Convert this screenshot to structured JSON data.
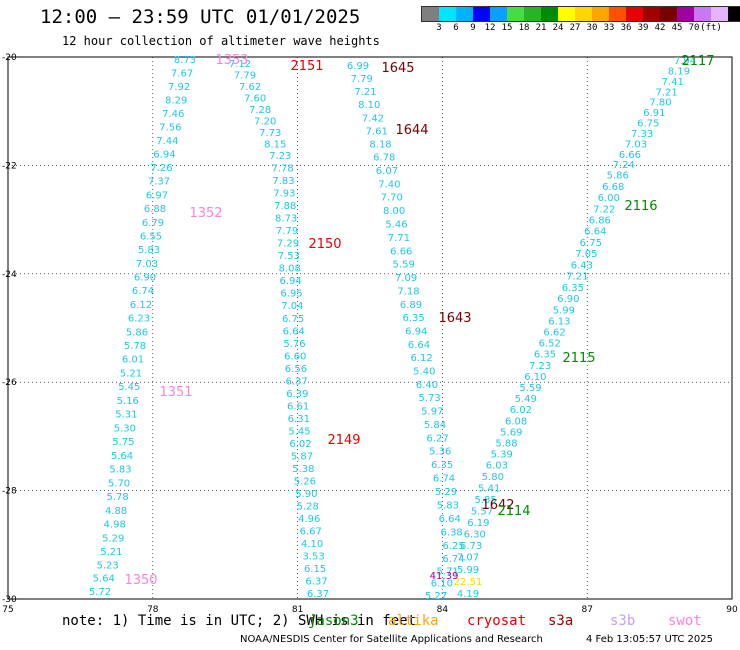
{
  "header": {
    "title": "12:00 – 23:59 UTC 01/01/2025",
    "subtitle": "12 hour collection of altimeter wave heights"
  },
  "legend": {
    "unit": "(ft)",
    "colors": [
      "#7f7f7f",
      "#00e5ff",
      "#00b2ff",
      "#0000ff",
      "#0aa0ff",
      "#46dc46",
      "#28b428",
      "#008c00",
      "#ffff00",
      "#ffd700",
      "#ffa500",
      "#ff5000",
      "#e60000",
      "#a00000",
      "#780000",
      "#a000a0",
      "#c878f0",
      "#e6b4ff",
      "#000000"
    ],
    "labels": [
      "3",
      "6",
      "9",
      "12",
      "15",
      "18",
      "21",
      "24",
      "27",
      "30",
      "33",
      "36",
      "39",
      "42",
      "45",
      "70"
    ]
  },
  "axes": {
    "x_ticks": [
      "75",
      "78",
      "81",
      "84",
      "87",
      "90"
    ],
    "y_ticks": [
      "-20",
      "-22",
      "-24",
      "-26",
      "-28",
      "-30"
    ],
    "x_range": [
      75,
      90
    ],
    "y_range": [
      -30,
      -20
    ]
  },
  "passes": [
    {
      "id": "1353",
      "color": "#ff80e0"
    },
    {
      "id": "1352",
      "color": "#ff80e0"
    },
    {
      "id": "1351",
      "color": "#ff80e0"
    },
    {
      "id": "1350",
      "color": "#ff80e0"
    },
    {
      "id": "2151",
      "color": "#e60000"
    },
    {
      "id": "2150",
      "color": "#e60000"
    },
    {
      "id": "2149",
      "color": "#e60000"
    },
    {
      "id": "1645",
      "color": "#780000"
    },
    {
      "id": "1644",
      "color": "#780000"
    },
    {
      "id": "1643",
      "color": "#780000"
    },
    {
      "id": "1642",
      "color": "#780000"
    },
    {
      "id": "2117",
      "color": "#008c00"
    },
    {
      "id": "2116",
      "color": "#008c00"
    },
    {
      "id": "2115",
      "color": "#008c00"
    },
    {
      "id": "2114",
      "color": "#008c00"
    },
    {
      "id": "41.39",
      "color": "#a000a0"
    }
  ],
  "tracks": [
    {
      "name": "track-a",
      "color": "#1ec8e6",
      "values": [
        "8.73",
        "7.67",
        "7.92",
        "8.29",
        "7.46",
        "7.56",
        "7.44",
        "6.94",
        "7.26",
        "7.37",
        "6.97",
        "6.88",
        "6.79",
        "6.55",
        "5.83",
        "7.03",
        "6.90",
        "6.74",
        "6.12",
        "6.23",
        "5.86",
        "5.78",
        "6.01",
        "5.21",
        "5.45",
        "5.16",
        "5.31",
        "5.30",
        "5.75",
        "5.64",
        "5.83",
        "5.70",
        "5.78",
        "4.88",
        "4.98",
        "5.29",
        "5.21",
        "5.23",
        "5.64",
        "5.72"
      ]
    },
    {
      "name": "track-b",
      "color": "#1ec8e6",
      "values": [
        "7.12",
        "7.79",
        "7.62",
        "7.60",
        "7.28",
        "7.20",
        "7.73",
        "8.15",
        "7.23",
        "7.78",
        "7.83",
        "7.93",
        "7.88",
        "8.73",
        "7.79",
        "7.29",
        "7.53",
        "8.08",
        "6.94",
        "6.95",
        "7.04",
        "6.75",
        "6.64",
        "5.76",
        "6.60",
        "6.56",
        "6.37",
        "6.39",
        "6.61",
        "6.31",
        "5.45",
        "6.02",
        "5.87",
        "5.38",
        "5.26",
        "5.90",
        "5.28",
        "4.96",
        "6.67",
        "4.10",
        "3.53",
        "6.15",
        "6.37",
        "6.37"
      ]
    },
    {
      "name": "track-c",
      "color": "#1ec8e6",
      "values": [
        "6.99",
        "7.79",
        "7.21",
        "8.10",
        "7.42",
        "7.61",
        "8.18",
        "6.78",
        "6.07",
        "7.40",
        "7.70",
        "8.00",
        "5.46",
        "7.71",
        "6.66",
        "5.59",
        "7.09",
        "7.18",
        "6.89",
        "6.35",
        "6.94",
        "6.64",
        "6.12",
        "5.40",
        "6.40",
        "5.73",
        "5.97",
        "5.84",
        "6.27",
        "5.36",
        "6.35",
        "6.74",
        "5.29",
        "5.83",
        "6.64",
        "6.38",
        "6.25",
        "6.74",
        "5.71",
        "6.10",
        "5.27"
      ]
    },
    {
      "name": "track-d",
      "color": "#1ec8e6",
      "values": [
        "7.94",
        "8.19",
        "7.41",
        "7.21",
        "7.80",
        "6.91",
        "6.75",
        "7.33",
        "7.03",
        "6.66",
        "7.24",
        "5.86",
        "6.68",
        "6.00",
        "7.22",
        "6.86",
        "6.64",
        "6.75",
        "7.05",
        "6.43",
        "7.21",
        "6.35",
        "6.90",
        "5.99",
        "6.13",
        "6.62",
        "6.52",
        "6.35",
        "7.23",
        "6.10",
        "5.59",
        "5.49",
        "6.02",
        "6.08",
        "5.69",
        "5.88",
        "5.39",
        "6.03",
        "5.80",
        "5.41",
        "5.85",
        "5.57",
        "6.19",
        "6.30",
        "6.73",
        "7.07",
        "5.99",
        "22.51",
        "4.19"
      ]
    }
  ],
  "note": {
    "text": "note: 1) Time is in UTC; 2) SWH is in feet",
    "satellites": [
      {
        "name": "jason3",
        "color": "#008c00"
      },
      {
        "name": "altika",
        "color": "#ffa500"
      },
      {
        "name": "cryosat",
        "color": "#e60000"
      },
      {
        "name": "s3a",
        "color": "#a00000"
      },
      {
        "name": "s3b",
        "color": "#c8a0f0"
      },
      {
        "name": "swot",
        "color": "#ff80e0"
      }
    ]
  },
  "footer": {
    "credit": "NOAA/NESDIS Center for Satellite Applications and Research",
    "timestamp": "4 Feb 13:05:57 UTC 2025"
  }
}
